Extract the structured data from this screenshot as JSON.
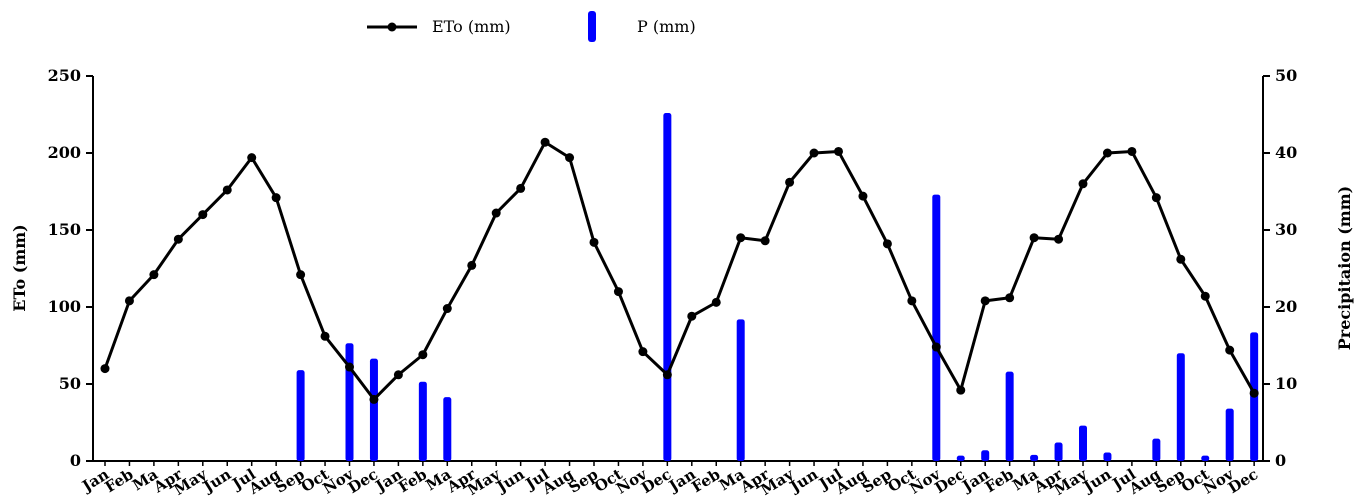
{
  "chart_data": {
    "type": "bar+line",
    "categories": [
      "Jan",
      "Feb",
      "Ma",
      "Apr",
      "May",
      "Jun",
      "Jul",
      "Aug",
      "Sep",
      "Oct",
      "Nov",
      "Dec",
      "Jan",
      "Feb",
      "Ma",
      "Apr",
      "May",
      "Jun",
      "Jul",
      "Aug",
      "Sep",
      "Oct",
      "Nov",
      "Dec",
      "Jan",
      "Feb",
      "Ma",
      "Apr",
      "May",
      "Jun",
      "Jul",
      "Aug",
      "Sep",
      "Oct",
      "Nov",
      "Dec",
      "Jan",
      "Feb",
      "Ma",
      "Apr",
      "May",
      "Jun",
      "Jul",
      "Aug",
      "Sep",
      "Oct",
      "Nov",
      "Dec"
    ],
    "series": [
      {
        "name": "ETo (mm)",
        "type": "line",
        "axis": "left",
        "color": "#000000",
        "values": [
          60,
          104,
          121,
          144,
          160,
          176,
          197,
          171,
          121,
          81,
          61,
          40,
          56,
          69,
          99,
          127,
          161,
          177,
          207,
          197,
          142,
          110,
          71,
          56,
          94,
          103,
          145,
          143,
          181,
          200,
          201,
          172,
          141,
          104,
          74,
          46,
          104,
          106,
          145,
          144,
          180,
          200,
          201,
          171,
          131,
          107,
          72,
          44
        ]
      },
      {
        "name": "P (mm)",
        "type": "bar",
        "axis": "right",
        "color": "#0000ff",
        "values": [
          0,
          0,
          0,
          0,
          0,
          0,
          0,
          0,
          11.8,
          0,
          15.3,
          13.3,
          0,
          10.3,
          8.3,
          0,
          0,
          0,
          0,
          0,
          0,
          0,
          0,
          45.2,
          0,
          0,
          18.4,
          0,
          0,
          0,
          0,
          0,
          0,
          0,
          34.6,
          0.7,
          1.4,
          11.6,
          0.8,
          2.4,
          4.6,
          1.1,
          0,
          2.9,
          14,
          0.7,
          6.8,
          16.7
        ]
      }
    ],
    "yleft": {
      "label": "ETo (mm)",
      "ylim": [
        0,
        250
      ],
      "ticks": [
        0,
        50,
        100,
        150,
        200,
        250
      ]
    },
    "yright": {
      "label": "Precipitaion (mm)",
      "ylim": [
        0,
        50
      ],
      "ticks": [
        0,
        10,
        20,
        30,
        40,
        50
      ]
    },
    "legend": {
      "position": "top-center"
    },
    "grid": false
  }
}
